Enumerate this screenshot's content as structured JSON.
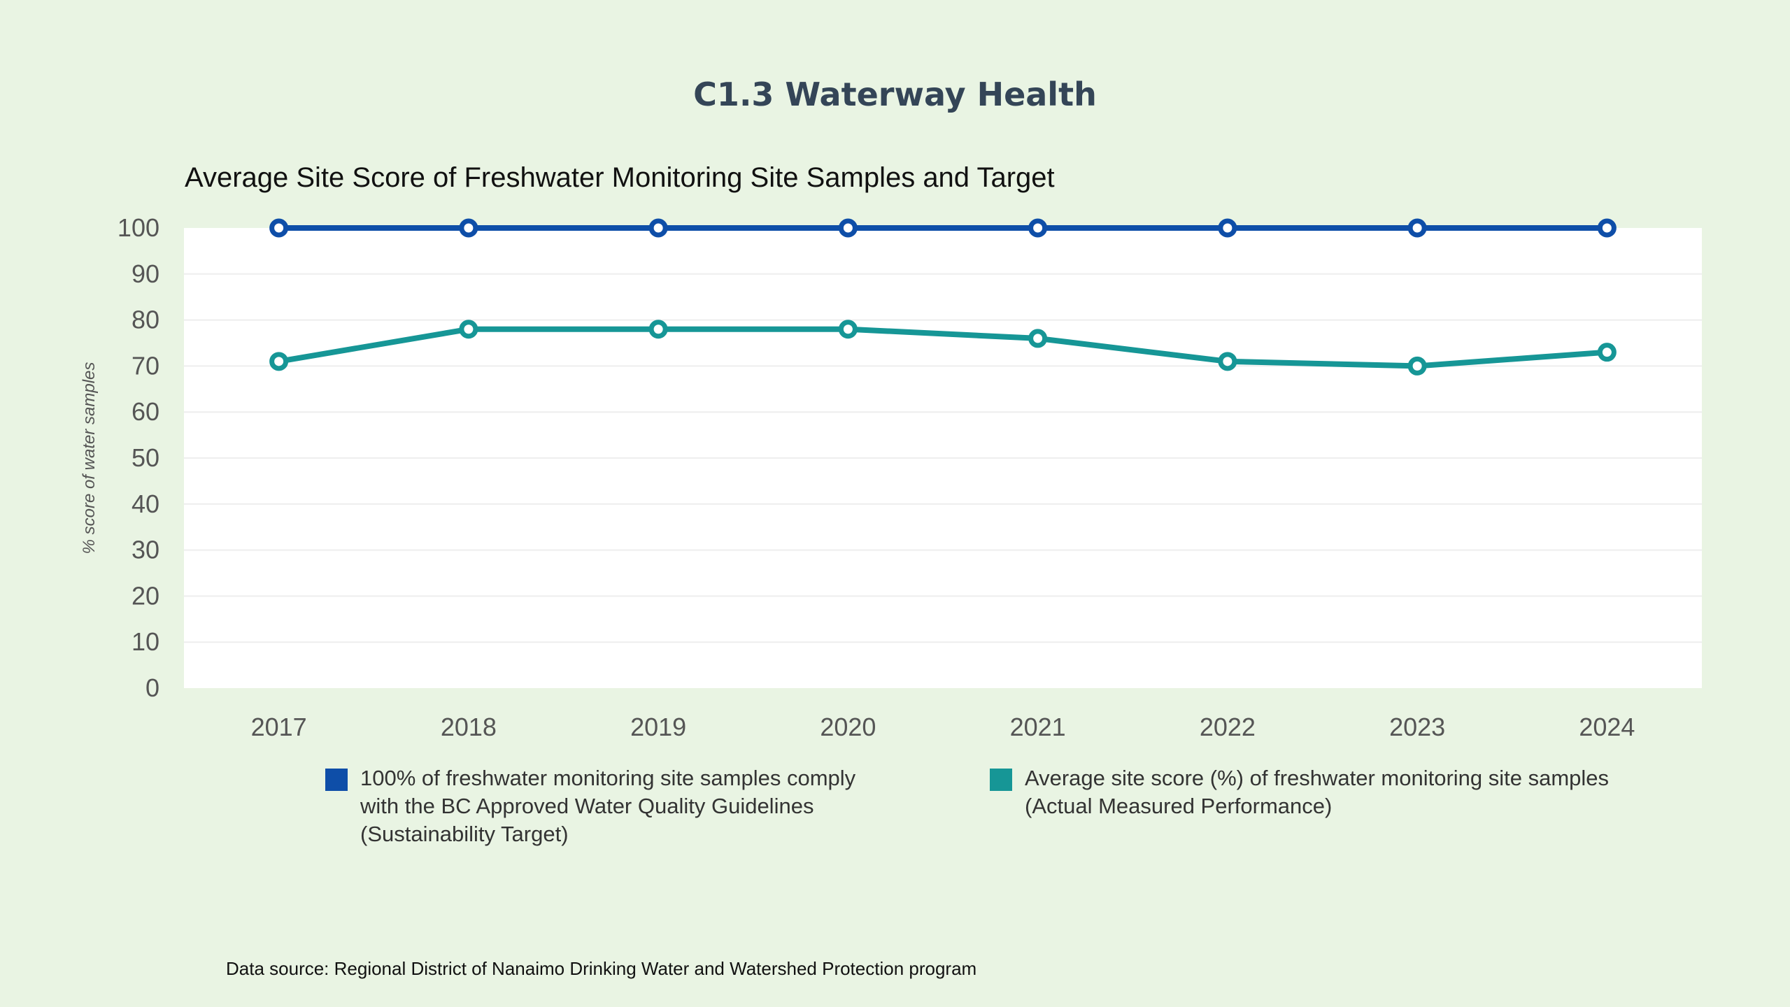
{
  "page": {
    "title": "C1.3 Waterway Health",
    "data_source": "Data source: Regional District of Nanaimo Drinking Water and Watershed Protection program"
  },
  "colors": {
    "background": "#e9f4e3",
    "plot_background": "#ffffff",
    "target": "#0e4ea8",
    "actual": "#169696",
    "title_text": "#344557"
  },
  "chart_data": {
    "type": "line",
    "title": "Average Site Score of Freshwater Monitoring Site Samples and Target",
    "xlabel": "",
    "ylabel": "% score of water samples",
    "ylim": [
      0,
      100
    ],
    "yticks": [
      0,
      10,
      20,
      30,
      40,
      50,
      60,
      70,
      80,
      90,
      100
    ],
    "grid": true,
    "legend_position": "bottom",
    "x": [
      "2017",
      "2018",
      "2019",
      "2020",
      "2021",
      "2022",
      "2023",
      "2024"
    ],
    "series": [
      {
        "key": "target",
        "name": "100% of freshwater monitoring site samples comply with the BC Approved Water Quality Guidelines (Sustainability Target)",
        "color": "#0e4ea8",
        "values": [
          100,
          100,
          100,
          100,
          100,
          100,
          100,
          100
        ]
      },
      {
        "key": "actual",
        "name": "Average site score (%) of freshwater monitoring site samples (Actual Measured Performance)",
        "color": "#169696",
        "values": [
          71,
          78,
          78,
          78,
          76,
          71,
          70,
          73
        ]
      }
    ]
  }
}
